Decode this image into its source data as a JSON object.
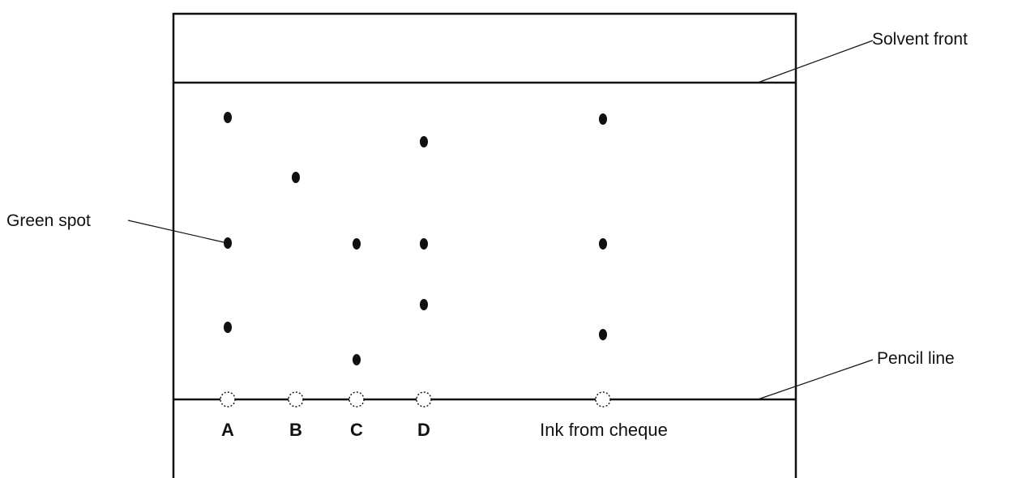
{
  "labels": {
    "solvent_front": "Solvent front",
    "pencil_line": "Pencil line",
    "green_spot": "Green spot"
  },
  "lanes": [
    {
      "label": "A"
    },
    {
      "label": "B"
    },
    {
      "label": "C"
    },
    {
      "label": "D"
    },
    {
      "label": "Ink from cheque"
    }
  ]
}
